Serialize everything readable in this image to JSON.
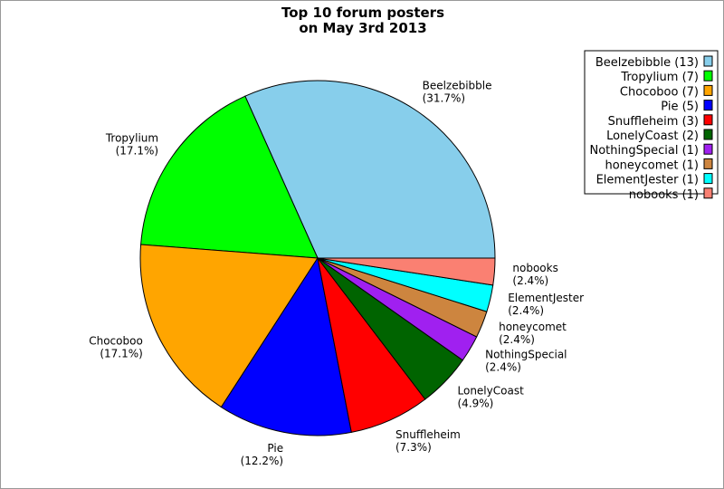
{
  "chart_data": {
    "type": "pie",
    "title": "Top 10 forum posters",
    "subtitle": "on May 3rd 2013",
    "legend_position": "top-right",
    "slices": [
      {
        "name": "Beelzebibble",
        "value": 13,
        "percent_label": "(31.7%)",
        "legend_label": "Beelzebibble (13)",
        "color": "#87CEEB"
      },
      {
        "name": "Tropylium",
        "value": 7,
        "percent_label": "(17.1%)",
        "legend_label": "Tropylium (7)",
        "color": "#00FF00"
      },
      {
        "name": "Chocoboo",
        "value": 7,
        "percent_label": "(17.1%)",
        "legend_label": "Chocoboo (7)",
        "color": "#FFA500"
      },
      {
        "name": "Pie",
        "value": 5,
        "percent_label": "(12.2%)",
        "legend_label": "Pie (5)",
        "color": "#0000FF"
      },
      {
        "name": "Snuffleheim",
        "value": 3,
        "percent_label": "(7.3%)",
        "legend_label": "Snuffleheim (3)",
        "color": "#FF0000"
      },
      {
        "name": "LonelyCoast",
        "value": 2,
        "percent_label": "(4.9%)",
        "legend_label": "LonelyCoast (2)",
        "color": "#006400"
      },
      {
        "name": "NothingSpecial",
        "value": 1,
        "percent_label": "(2.4%)",
        "legend_label": "NothingSpecial (1)",
        "color": "#A020F0"
      },
      {
        "name": "honeycomet",
        "value": 1,
        "percent_label": "(2.4%)",
        "legend_label": "honeycomet (1)",
        "color": "#CD853F"
      },
      {
        "name": "ElementJester",
        "value": 1,
        "percent_label": "(2.4%)",
        "legend_label": "ElementJester (1)",
        "color": "#00FFFF"
      },
      {
        "name": "nobooks",
        "value": 1,
        "percent_label": "(2.4%)",
        "legend_label": "nobooks (1)",
        "color": "#FA8072"
      }
    ]
  }
}
